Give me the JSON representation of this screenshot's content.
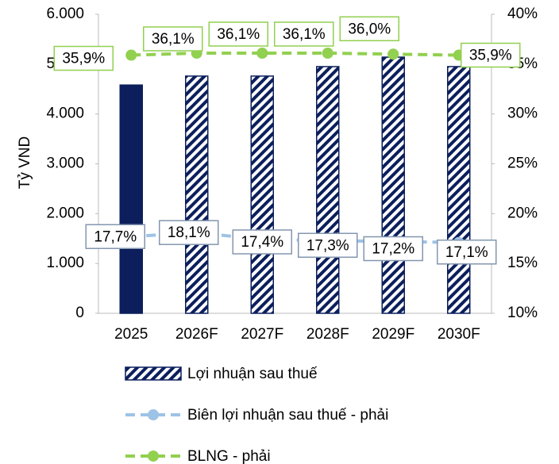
{
  "chart_data": {
    "type": "bar_line",
    "y_label": "Tỷ VND",
    "categories": [
      "2025",
      "2026F",
      "2027F",
      "2028F",
      "2029F",
      "2030F"
    ],
    "series": [
      {
        "name": "Lợi nhuận sau thuế",
        "type": "bar",
        "color": "#0c1f5c",
        "point_styles": [
          "solid",
          "hatched",
          "hatched",
          "hatched",
          "hatched",
          "hatched"
        ],
        "values": [
          4580,
          4760,
          4760,
          4950,
          5140,
          4950
        ]
      },
      {
        "name": "Biên lợi nhuận sau thuế - phải",
        "type": "line",
        "axis": "y2",
        "color": "#9dc3e6",
        "values": [
          17.7,
          18.1,
          17.4,
          17.3,
          17.2,
          17.1
        ],
        "value_labels": [
          "17,7%",
          "18,1%",
          "17,4%",
          "17,3%",
          "17,2%",
          "17,1%"
        ]
      },
      {
        "name": "BLNG - phải",
        "type": "line",
        "axis": "y2",
        "color": "#92d050",
        "values": [
          35.9,
          36.1,
          36.1,
          36.1,
          36.0,
          35.9
        ],
        "value_labels": [
          "35,9%",
          "36,1%",
          "36,1%",
          "36,1%",
          "36,0%",
          "35,9%"
        ]
      }
    ],
    "ylim": [
      0,
      6000
    ],
    "yticks": [
      {
        "value": 0,
        "label": "0"
      },
      {
        "value": 1000,
        "label": "1.000"
      },
      {
        "value": 2000,
        "label": "2.000"
      },
      {
        "value": 3000,
        "label": "3.000"
      },
      {
        "value": 4000,
        "label": "4.000"
      },
      {
        "value": 5000,
        "label": "5.000"
      },
      {
        "value": 6000,
        "label": "6.000"
      }
    ],
    "y2lim": [
      10,
      40
    ],
    "y2ticks": [
      {
        "value": 10,
        "label": "10%"
      },
      {
        "value": 15,
        "label": "15%"
      },
      {
        "value": 20,
        "label": "20%"
      },
      {
        "value": 25,
        "label": "25%"
      },
      {
        "value": 30,
        "label": "30%"
      },
      {
        "value": 35,
        "label": "35%"
      },
      {
        "value": 40,
        "label": "40%"
      }
    ],
    "grid": false,
    "legend": "bottom"
  }
}
